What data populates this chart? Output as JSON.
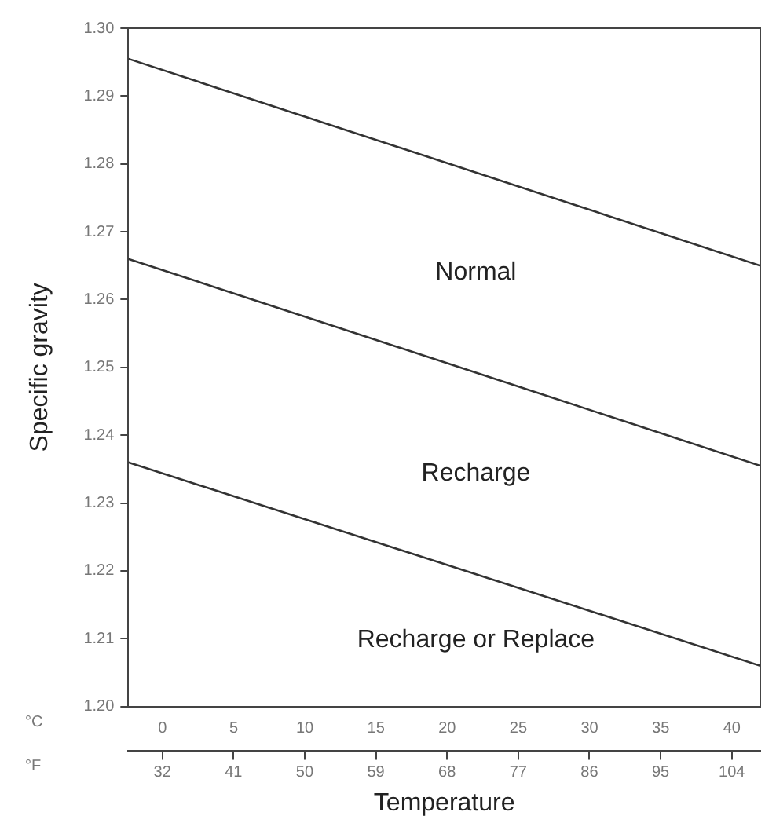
{
  "chart_data": {
    "type": "line",
    "xlabel": "Temperature",
    "ylabel": "Specific gravity",
    "x": [
      -2.4,
      42
    ],
    "series": [
      {
        "color": "#333333",
        "values": [
          1.2955,
          1.265
        ]
      },
      {
        "color": "#333333",
        "values": [
          1.266,
          1.2355
        ]
      },
      {
        "color": "#333333",
        "values": [
          1.236,
          1.206
        ]
      }
    ],
    "xlim": [
      -2.4,
      42
    ],
    "xticks": [
      0,
      5,
      10,
      15,
      20,
      25,
      30,
      35,
      40
    ],
    "x2lim": [
      27.7,
      107.6
    ],
    "x2ticks": [
      32,
      41,
      50,
      59,
      68,
      77,
      86,
      95,
      104
    ],
    "ylim": [
      1.2,
      1.3
    ],
    "yticks": [
      {
        "value": 1.2,
        "label": "1.20"
      },
      {
        "value": 1.21,
        "label": "1.21"
      },
      {
        "value": 1.22,
        "label": "1.22"
      },
      {
        "value": 1.23,
        "label": "1.23"
      },
      {
        "value": 1.24,
        "label": "1.24"
      },
      {
        "value": 1.25,
        "label": "1.25"
      },
      {
        "value": 1.26,
        "label": "1.26"
      },
      {
        "value": 1.27,
        "label": "1.27"
      },
      {
        "value": 1.28,
        "label": "1.28"
      },
      {
        "value": 1.29,
        "label": "1.29"
      },
      {
        "value": 1.3,
        "label": "1.30"
      }
    ],
    "annotations": [
      "Normal",
      "Recharge",
      "Recharge or Replace",
      "°C",
      "°F"
    ],
    "grid": false,
    "marker": "none",
    "line_style": "solid",
    "legend": false
  }
}
